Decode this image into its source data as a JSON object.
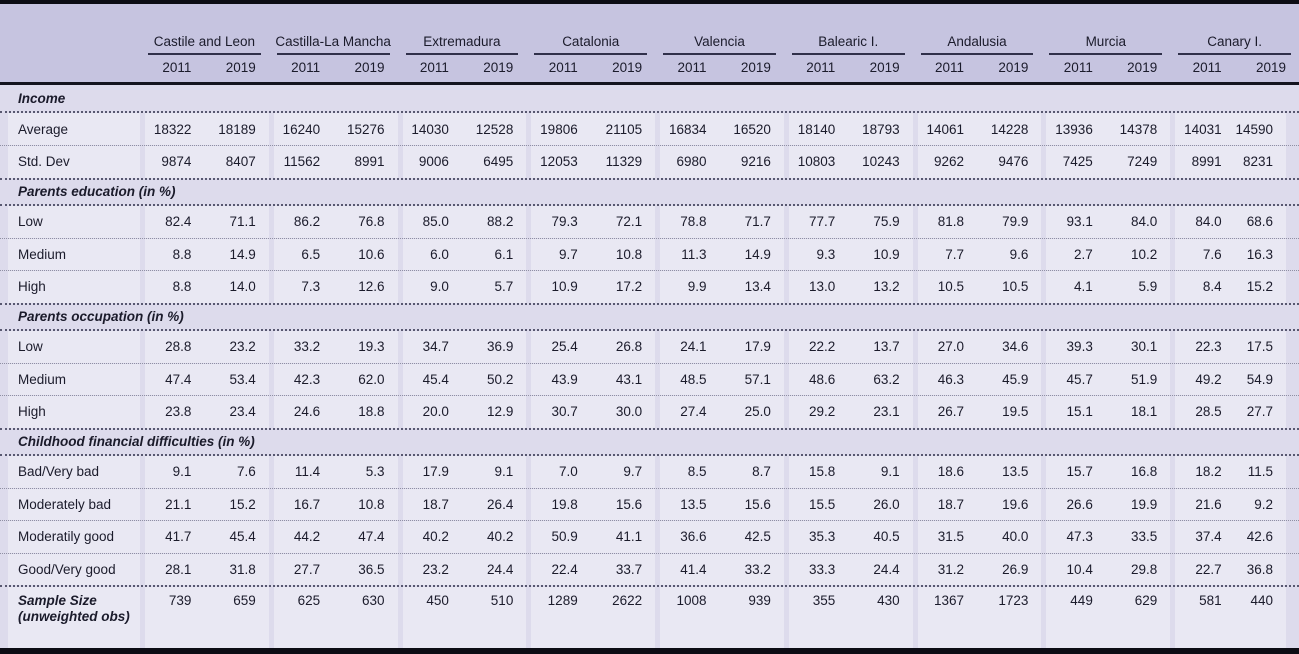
{
  "colors": {
    "header_band": "#c6c4e0",
    "section_band": "#dddbec",
    "data_row": "#e9e8f3",
    "rule": "#0c0c14",
    "text": "#1b1b2b"
  },
  "table": {
    "year_labels": [
      "2011",
      "2019"
    ],
    "regions": [
      "Castile and Leon",
      "Castilla-La Mancha",
      "Extremadura",
      "Catalonia",
      "Valencia",
      "Balearic I.",
      "Andalusia",
      "Murcia",
      "Canary I."
    ],
    "sections": [
      {
        "title": "Income",
        "rows": [
          {
            "label": "Average",
            "values": [
              "18322",
              "18189",
              "16240",
              "15276",
              "14030",
              "12528",
              "19806",
              "21105",
              "16834",
              "16520",
              "18140",
              "18793",
              "14061",
              "14228",
              "13936",
              "14378",
              "14031",
              "14590"
            ]
          },
          {
            "label": "Std. Dev",
            "values": [
              "9874",
              "8407",
              "11562",
              "8991",
              "9006",
              "6495",
              "12053",
              "11329",
              "6980",
              "9216",
              "10803",
              "10243",
              "9262",
              "9476",
              "7425",
              "7249",
              "8991",
              "8231"
            ]
          }
        ]
      },
      {
        "title": "Parents education (in %)",
        "rows": [
          {
            "label": "Low",
            "values": [
              "82.4",
              "71.1",
              "86.2",
              "76.8",
              "85.0",
              "88.2",
              "79.3",
              "72.1",
              "78.8",
              "71.7",
              "77.7",
              "75.9",
              "81.8",
              "79.9",
              "93.1",
              "84.0",
              "84.0",
              "68.6"
            ]
          },
          {
            "label": "Medium",
            "values": [
              "8.8",
              "14.9",
              "6.5",
              "10.6",
              "6.0",
              "6.1",
              "9.7",
              "10.8",
              "11.3",
              "14.9",
              "9.3",
              "10.9",
              "7.7",
              "9.6",
              "2.7",
              "10.2",
              "7.6",
              "16.3"
            ]
          },
          {
            "label": "High",
            "values": [
              "8.8",
              "14.0",
              "7.3",
              "12.6",
              "9.0",
              "5.7",
              "10.9",
              "17.2",
              "9.9",
              "13.4",
              "13.0",
              "13.2",
              "10.5",
              "10.5",
              "4.1",
              "5.9",
              "8.4",
              "15.2"
            ]
          }
        ]
      },
      {
        "title": "Parents occupation (in %)",
        "rows": [
          {
            "label": "Low",
            "values": [
              "28.8",
              "23.2",
              "33.2",
              "19.3",
              "34.7",
              "36.9",
              "25.4",
              "26.8",
              "24.1",
              "17.9",
              "22.2",
              "13.7",
              "27.0",
              "34.6",
              "39.3",
              "30.1",
              "22.3",
              "17.5"
            ]
          },
          {
            "label": "Medium",
            "values": [
              "47.4",
              "53.4",
              "42.3",
              "62.0",
              "45.4",
              "50.2",
              "43.9",
              "43.1",
              "48.5",
              "57.1",
              "48.6",
              "63.2",
              "46.3",
              "45.9",
              "45.7",
              "51.9",
              "49.2",
              "54.9"
            ]
          },
          {
            "label": "High",
            "values": [
              "23.8",
              "23.4",
              "24.6",
              "18.8",
              "20.0",
              "12.9",
              "30.7",
              "30.0",
              "27.4",
              "25.0",
              "29.2",
              "23.1",
              "26.7",
              "19.5",
              "15.1",
              "18.1",
              "28.5",
              "27.7"
            ]
          }
        ]
      },
      {
        "title": "Childhood financial difficulties (in %)",
        "rows": [
          {
            "label": "Bad/Very bad",
            "values": [
              "9.1",
              "7.6",
              "11.4",
              "5.3",
              "17.9",
              "9.1",
              "7.0",
              "9.7",
              "8.5",
              "8.7",
              "15.8",
              "9.1",
              "18.6",
              "13.5",
              "15.7",
              "16.8",
              "18.2",
              "11.5"
            ]
          },
          {
            "label": "Moderately bad",
            "values": [
              "21.1",
              "15.2",
              "16.7",
              "10.8",
              "18.7",
              "26.4",
              "19.8",
              "15.6",
              "13.5",
              "15.6",
              "15.5",
              "26.0",
              "18.7",
              "19.6",
              "26.6",
              "19.9",
              "21.6",
              "9.2"
            ]
          },
          {
            "label": "Moderatily good",
            "values": [
              "41.7",
              "45.4",
              "44.2",
              "47.4",
              "40.2",
              "40.2",
              "50.9",
              "41.1",
              "36.6",
              "42.5",
              "35.3",
              "40.5",
              "31.5",
              "40.0",
              "47.3",
              "33.5",
              "37.4",
              "42.6"
            ]
          },
          {
            "label": "Good/Very good",
            "values": [
              "28.1",
              "31.8",
              "27.7",
              "36.5",
              "23.2",
              "24.4",
              "22.4",
              "33.7",
              "41.4",
              "33.2",
              "33.3",
              "24.4",
              "31.2",
              "26.9",
              "10.4",
              "29.8",
              "22.7",
              "36.8"
            ]
          }
        ]
      }
    ],
    "footer": {
      "label": "Sample Size (unweighted obs)",
      "values": [
        "739",
        "659",
        "625",
        "630",
        "450",
        "510",
        "1289",
        "2622",
        "1008",
        "939",
        "355",
        "430",
        "1367",
        "1723",
        "449",
        "629",
        "581",
        "440"
      ]
    }
  }
}
